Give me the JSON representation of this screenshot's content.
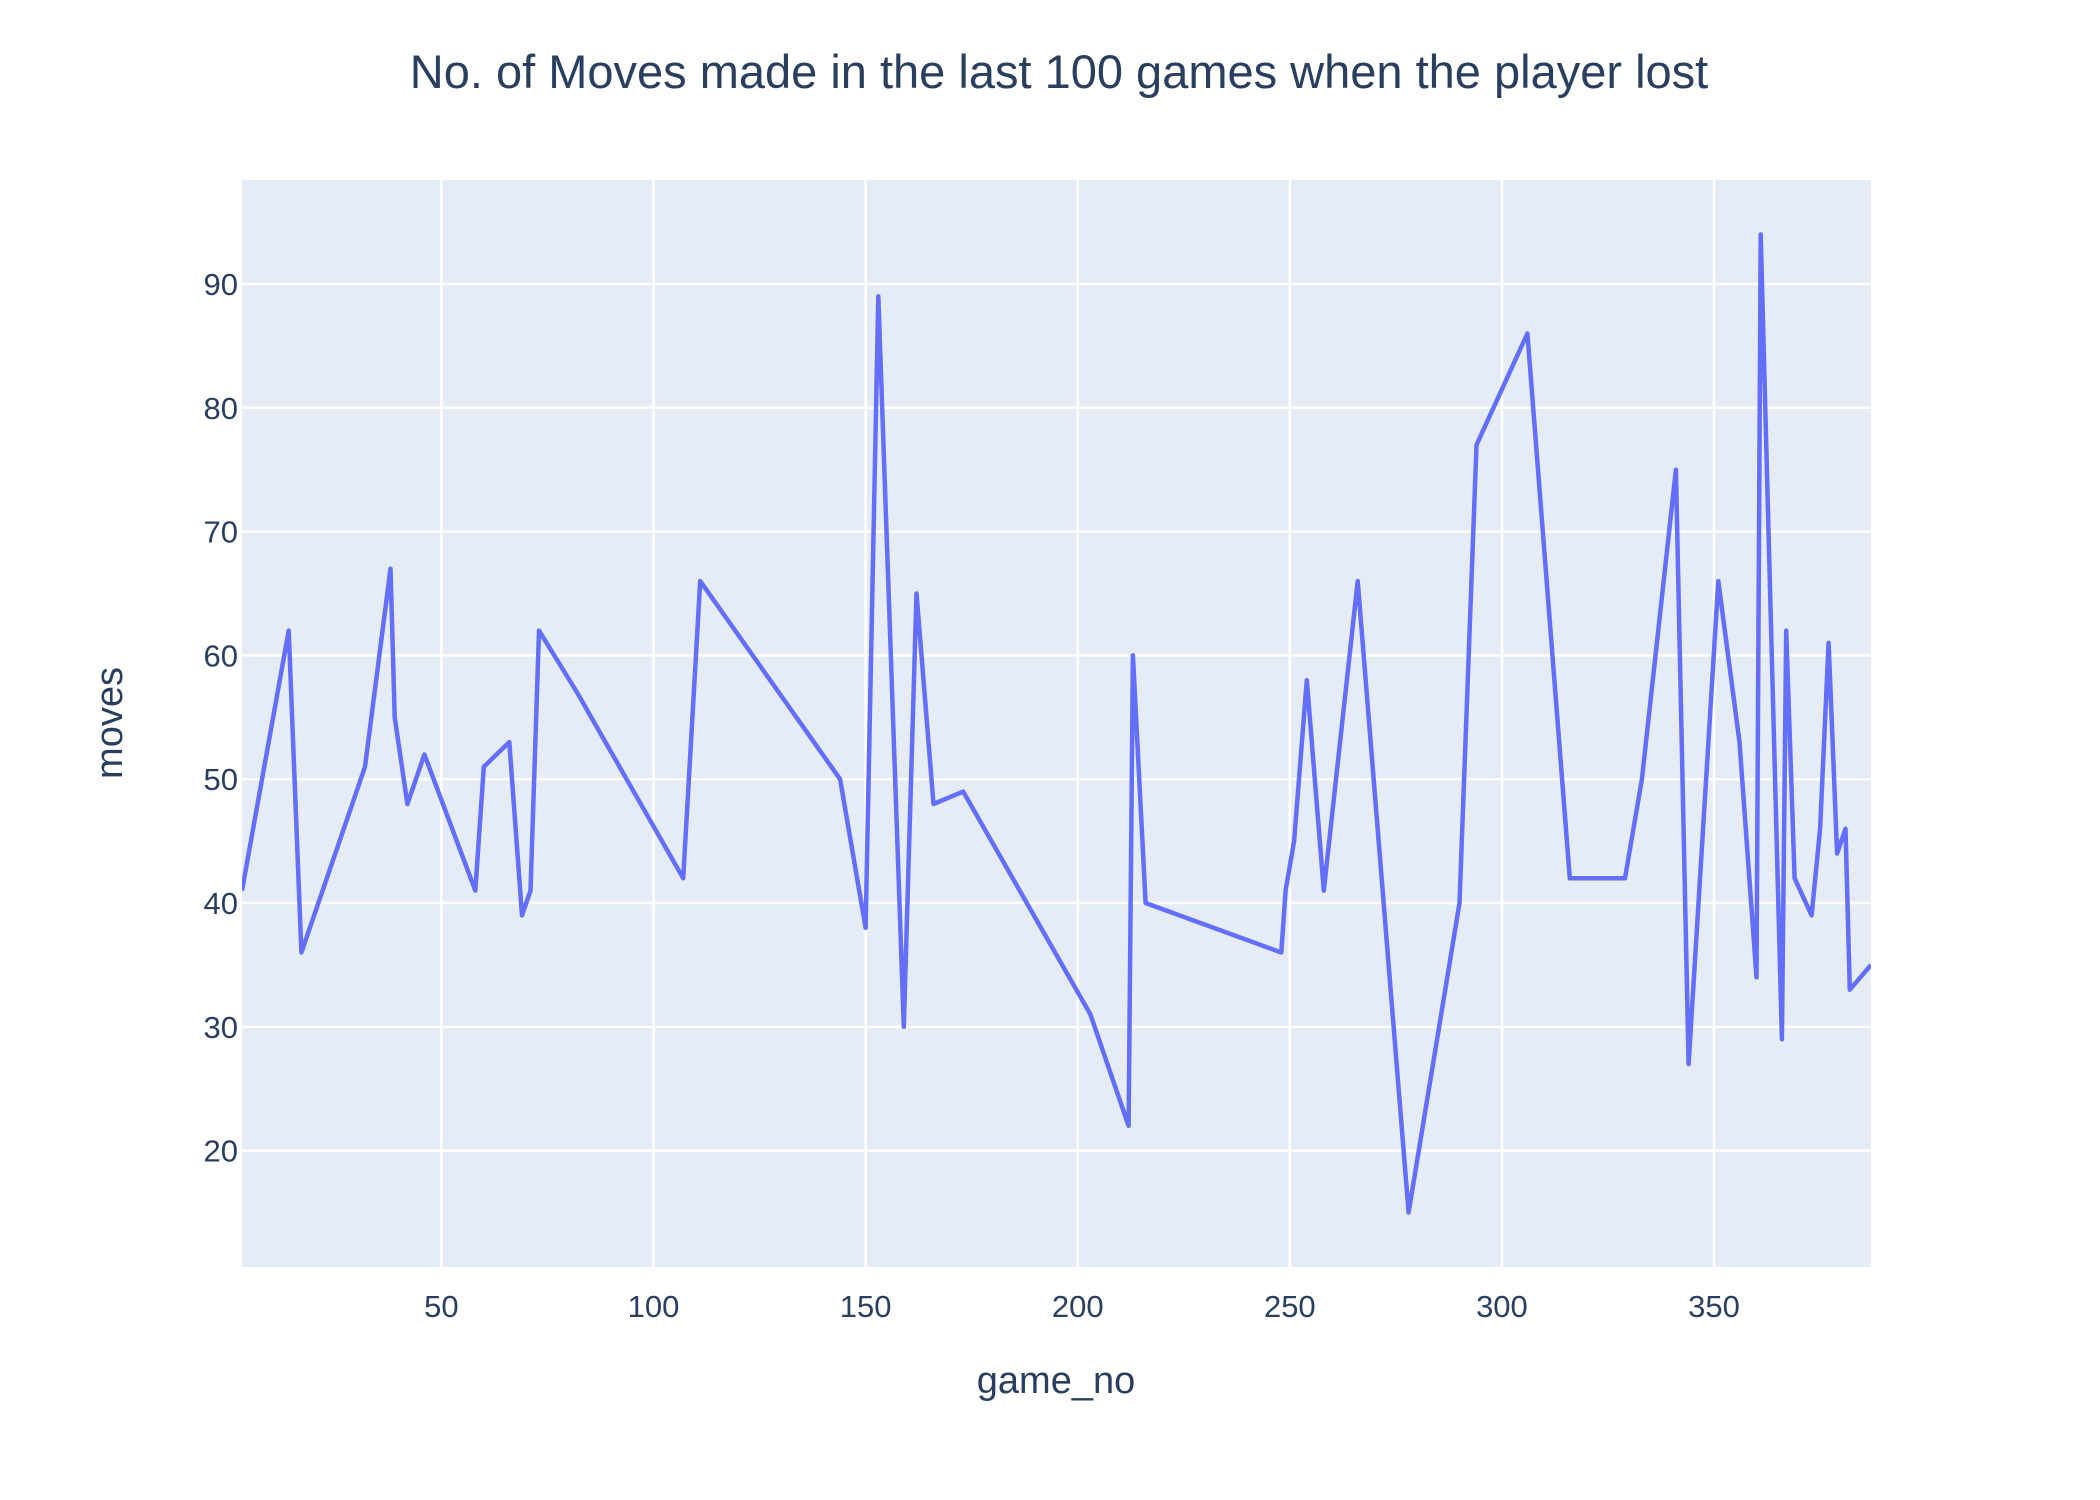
{
  "chart_data": {
    "type": "line",
    "title": "No. of Moves made in the last 100 games when the player lost",
    "xlabel": "game_no",
    "ylabel": "moves",
    "xlim": [
      3,
      387
    ],
    "ylim": [
      10.6,
      98.4
    ],
    "xticks": [
      50,
      100,
      150,
      200,
      250,
      300,
      350
    ],
    "yticks": [
      20,
      30,
      40,
      50,
      60,
      70,
      80,
      90
    ],
    "grid": true,
    "legend": "none",
    "colors": {
      "line": "#636efa",
      "plot_bg": "#e5ecf6",
      "grid": "#ffffff",
      "text": "#2a3f5f"
    },
    "series": [
      {
        "x": [
          3,
          14,
          17,
          32,
          38,
          39,
          42,
          46,
          58,
          60,
          66,
          69,
          71,
          73,
          82,
          107,
          111,
          144,
          150,
          153,
          159,
          162,
          166,
          173,
          203,
          212,
          213,
          216,
          248,
          249,
          251,
          254,
          258,
          266,
          278,
          290,
          294,
          306,
          316,
          329,
          333,
          341,
          344,
          351,
          356,
          360,
          361,
          366,
          367,
          369,
          373,
          375,
          377,
          379,
          381,
          382,
          387
        ],
        "y": [
          41,
          62,
          36,
          51,
          67,
          55,
          48,
          52,
          41,
          51,
          53,
          39,
          41,
          62,
          57,
          42,
          66,
          50,
          38,
          89,
          30,
          65,
          48,
          49,
          31,
          22,
          60,
          40,
          36,
          41,
          45,
          58,
          41,
          66,
          15,
          40,
          77,
          86,
          42,
          42,
          50,
          75,
          27,
          66,
          53,
          34,
          94,
          29,
          62,
          42,
          39,
          46,
          61,
          44,
          46,
          33,
          35
        ]
      }
    ]
  }
}
